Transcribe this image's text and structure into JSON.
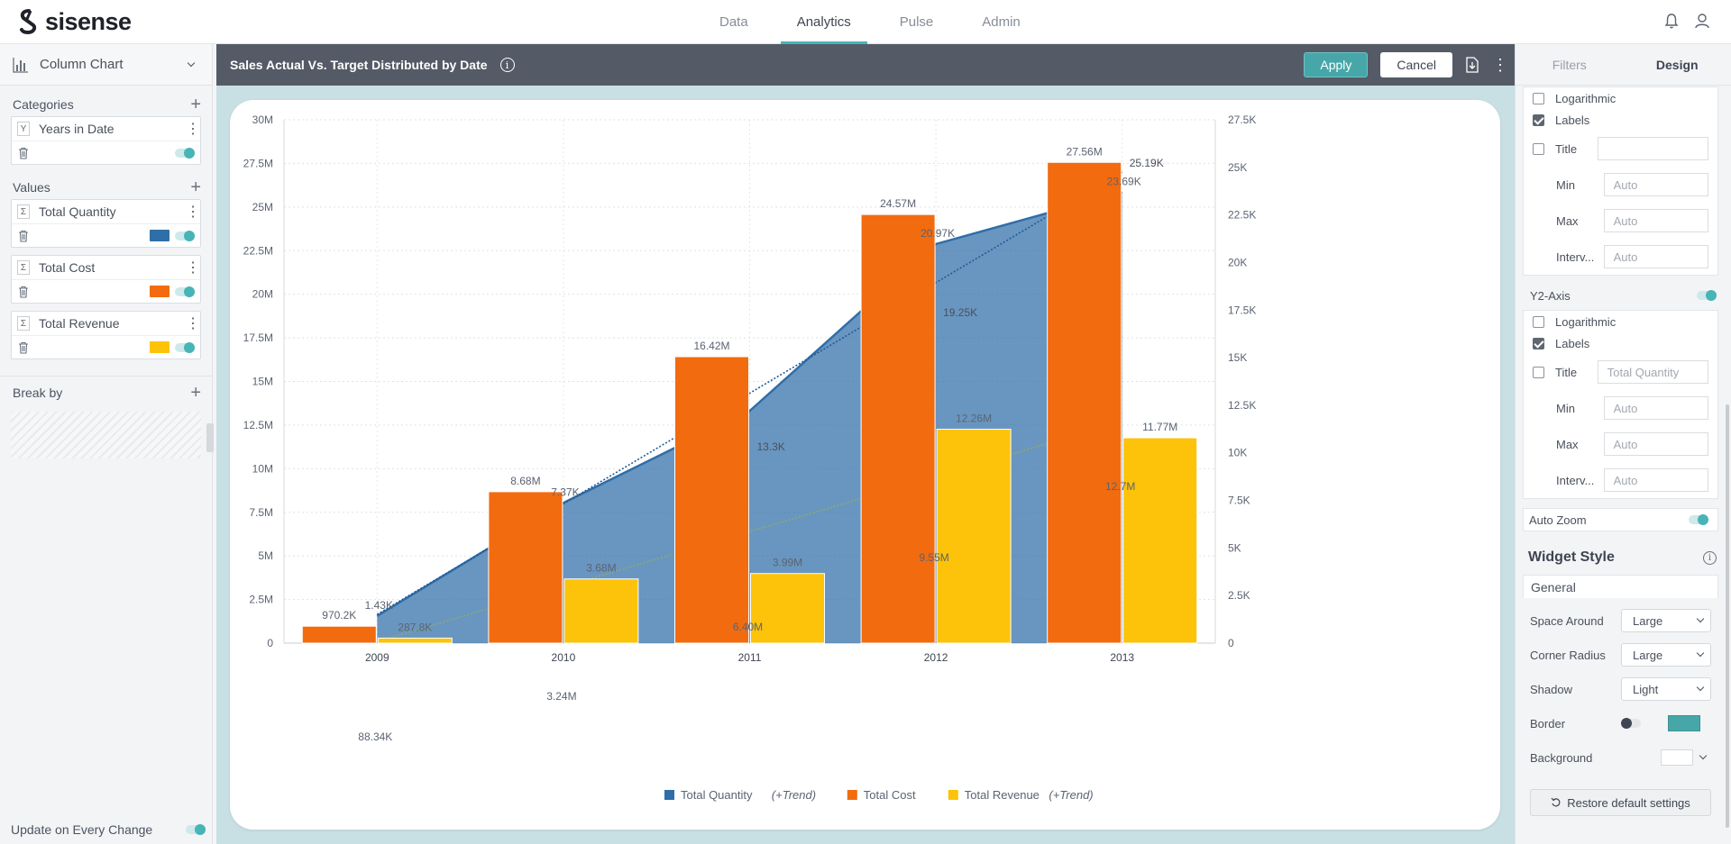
{
  "app": {
    "name": "sisense"
  },
  "nav": {
    "tabs": [
      "Data",
      "Analytics",
      "Pulse",
      "Admin"
    ],
    "active": "Analytics"
  },
  "left": {
    "chart_type": "Column Chart",
    "categories_label": "Categories",
    "category_field": {
      "glyph": "Y",
      "name": "Years in Date"
    },
    "values_label": "Values",
    "value_fields": [
      {
        "glyph": "Σ",
        "name": "Total Quantity",
        "color": "#2f6ea8"
      },
      {
        "glyph": "Σ",
        "name": "Total Cost",
        "color": "#f26b0f"
      },
      {
        "glyph": "Σ",
        "name": "Total Revenue",
        "color": "#fcc30a"
      }
    ],
    "breakby_label": "Break by",
    "update_label": "Update on Every Change"
  },
  "toolbar": {
    "title": "Sales Actual Vs. Target Distributed by Date",
    "apply": "Apply",
    "cancel": "Cancel",
    "info": "i"
  },
  "right": {
    "tabs": [
      "Filters",
      "Design"
    ],
    "active_tab": "Design",
    "y_axis": {
      "logarithmic": "Logarithmic",
      "labels": "Labels",
      "title": "Title",
      "title_value": "",
      "min": "Min",
      "max": "Max",
      "interval": "Interv...",
      "auto": "Auto"
    },
    "y2_axis": {
      "heading": "Y2-Axis",
      "logarithmic": "Logarithmic",
      "labels": "Labels",
      "title": "Title",
      "title_placeholder": "Total Quantity",
      "min": "Min",
      "max": "Max",
      "interval": "Interv...",
      "auto": "Auto"
    },
    "auto_zoom": "Auto Zoom",
    "widget_style": {
      "title": "Widget Style",
      "general": "General",
      "space_around": {
        "label": "Space Around",
        "value": "Large"
      },
      "corner_radius": {
        "label": "Corner Radius",
        "value": "Large"
      },
      "shadow": {
        "label": "Shadow",
        "value": "Light"
      },
      "border": {
        "label": "Border",
        "color": "#47a7a8"
      },
      "background": {
        "label": "Background",
        "color": "#ffffff"
      },
      "restore": "Restore default settings"
    }
  },
  "chart_data": {
    "type": "bar",
    "categories": [
      "2009",
      "2010",
      "2011",
      "2012",
      "2013"
    ],
    "ylim": [
      0,
      30000000
    ],
    "y2lim": [
      0,
      27500
    ],
    "y_ticks": [
      "0",
      "2.5M",
      "5M",
      "7.5M",
      "10M",
      "12.5M",
      "15M",
      "17.5M",
      "20M",
      "22.5M",
      "25M",
      "27.5M",
      "30M"
    ],
    "y2_ticks": [
      "0",
      "2.5K",
      "5K",
      "7.5K",
      "10K",
      "12.5K",
      "15K",
      "17.5K",
      "20K",
      "22.5K",
      "25K",
      "27.5K"
    ],
    "series": [
      {
        "name": "Total Quantity",
        "type": "area",
        "axis": "y2",
        "color": "#2f6ea8",
        "values": [
          1430,
          7370,
          12200,
          20970,
          23690
        ],
        "labels": [
          "1.43K",
          "7.37K",
          "",
          "20.97K",
          "23.69K"
        ]
      },
      {
        "name": "Total Cost",
        "type": "bar",
        "axis": "y",
        "color": "#f26b0f",
        "values": [
          970200,
          8680000,
          16420000,
          24570000,
          27560000
        ],
        "labels": [
          "970.2K",
          "8.68M",
          "16.42M",
          "24.57M",
          "27.56M"
        ]
      },
      {
        "name": "Total Revenue",
        "type": "bar",
        "axis": "y",
        "color": "#fcc30a",
        "values": [
          287800,
          3680000,
          3990000,
          12260000,
          11770000
        ],
        "labels": [
          "287.8K",
          "3.68M",
          "3.99M",
          "12.26M",
          "11.77M"
        ]
      }
    ],
    "trend_labels": [
      {
        "label": "25.19K",
        "series": "Total Quantity"
      },
      {
        "label": "19.25K",
        "series": "Total Quantity"
      },
      {
        "label": "13.3K",
        "series": "Total Quantity"
      },
      {
        "label": "12.7M",
        "series": "Total Revenue"
      },
      {
        "label": "9.55M",
        "series": "Total Revenue"
      },
      {
        "label": "6.40M",
        "series": "Total Revenue"
      },
      {
        "label": "3.24M",
        "series": "Total Revenue"
      },
      {
        "label": "88.34K",
        "series": "Total Revenue"
      }
    ],
    "legend": [
      {
        "name": "Total Quantity",
        "suffix": "(+Trend)",
        "color": "#2f6ea8"
      },
      {
        "name": "Total Cost",
        "suffix": "",
        "color": "#f26b0f"
      },
      {
        "name": "Total Revenue",
        "suffix": "(+Trend)",
        "color": "#fcc30a"
      }
    ]
  }
}
